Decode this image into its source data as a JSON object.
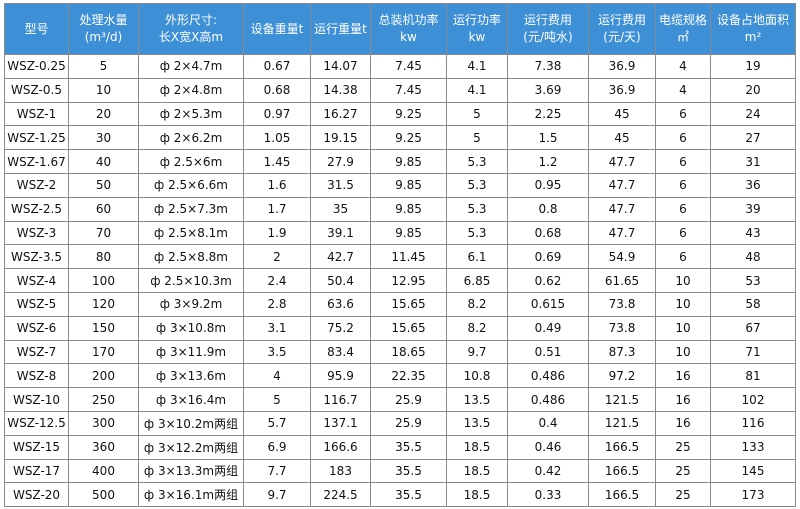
{
  "table": {
    "header": [
      [
        "型号"
      ],
      [
        "处理水量",
        "(m³/d)"
      ],
      [
        "外形尺寸:",
        "长X宽X高m"
      ],
      [
        "设备重量t"
      ],
      [
        "运行重量t"
      ],
      [
        "总装机功率",
        "kw"
      ],
      [
        "运行功率",
        "kw"
      ],
      [
        "运行费用",
        "(元/吨水)"
      ],
      [
        "运行费用",
        "(元/天)"
      ],
      [
        "电缆规格",
        "㎡"
      ],
      [
        "设备占地面积",
        "m²"
      ]
    ],
    "rows": [
      [
        "WSZ-0.25",
        "5",
        "ф 2×4.7m",
        "0.67",
        "14.07",
        "7.45",
        "4.1",
        "7.38",
        "36.9",
        "4",
        "19"
      ],
      [
        "WSZ-0.5",
        "10",
        "ф 2×4.8m",
        "0.68",
        "14.38",
        "7.45",
        "4.1",
        "3.69",
        "36.9",
        "4",
        "20"
      ],
      [
        "WSZ-1",
        "20",
        "ф 2×5.3m",
        "0.97",
        "16.27",
        "9.25",
        "5",
        "2.25",
        "45",
        "6",
        "24"
      ],
      [
        "WSZ-1.25",
        "30",
        "ф 2×6.2m",
        "1.05",
        "19.15",
        "9.25",
        "5",
        "1.5",
        "45",
        "6",
        "27"
      ],
      [
        "WSZ-1.67",
        "40",
        "ф 2.5×6m",
        "1.45",
        "27.9",
        "9.85",
        "5.3",
        "1.2",
        "47.7",
        "6",
        "31"
      ],
      [
        "WSZ-2",
        "50",
        "ф 2.5×6.6m",
        "1.6",
        "31.5",
        "9.85",
        "5.3",
        "0.95",
        "47.7",
        "6",
        "36"
      ],
      [
        "WSZ-2.5",
        "60",
        "ф 2.5×7.3m",
        "1.7",
        "35",
        "9.85",
        "5.3",
        "0.8",
        "47.7",
        "6",
        "39"
      ],
      [
        "WSZ-3",
        "70",
        "ф 2.5×8.1m",
        "1.9",
        "39.1",
        "9.85",
        "5.3",
        "0.68",
        "47.7",
        "6",
        "43"
      ],
      [
        "WSZ-3.5",
        "80",
        "ф 2.5×8.8m",
        "2",
        "42.7",
        "11.45",
        "6.1",
        "0.69",
        "54.9",
        "6",
        "48"
      ],
      [
        "WSZ-4",
        "100",
        "ф 2.5×10.3m",
        "2.4",
        "50.4",
        "12.95",
        "6.85",
        "0.62",
        "61.65",
        "10",
        "53"
      ],
      [
        "WSZ-5",
        "120",
        "ф 3×9.2m",
        "2.8",
        "63.6",
        "15.65",
        "8.2",
        "0.615",
        "73.8",
        "10",
        "58"
      ],
      [
        "WSZ-6",
        "150",
        "ф 3×10.8m",
        "3.1",
        "75.2",
        "15.65",
        "8.2",
        "0.49",
        "73.8",
        "10",
        "67"
      ],
      [
        "WSZ-7",
        "170",
        "ф 3×11.9m",
        "3.5",
        "83.4",
        "18.65",
        "9.7",
        "0.51",
        "87.3",
        "10",
        "71"
      ],
      [
        "WSZ-8",
        "200",
        "ф 3×13.6m",
        "4",
        "95.9",
        "22.35",
        "10.8",
        "0.486",
        "97.2",
        "16",
        "81"
      ],
      [
        "WSZ-10",
        "250",
        "ф 3×16.4m",
        "5",
        "116.7",
        "25.9",
        "13.5",
        "0.486",
        "121.5",
        "16",
        "102"
      ],
      [
        "WSZ-12.5",
        "300",
        "ф 3×10.2m两组",
        "5.7",
        "137.1",
        "25.9",
        "13.5",
        "0.4",
        "121.5",
        "16",
        "116"
      ],
      [
        "WSZ-15",
        "360",
        "ф 3×12.2m两组",
        "6.9",
        "166.6",
        "35.5",
        "18.5",
        "0.46",
        "166.5",
        "25",
        "133"
      ],
      [
        "WSZ-17",
        "400",
        "ф 3×13.3m两组",
        "7.7",
        "183",
        "35.5",
        "18.5",
        "0.42",
        "166.5",
        "25",
        "145"
      ],
      [
        "WSZ-20",
        "500",
        "ф 3×16.1m两组",
        "9.7",
        "224.5",
        "35.5",
        "18.5",
        "0.33",
        "166.5",
        "25",
        "173"
      ]
    ]
  }
}
